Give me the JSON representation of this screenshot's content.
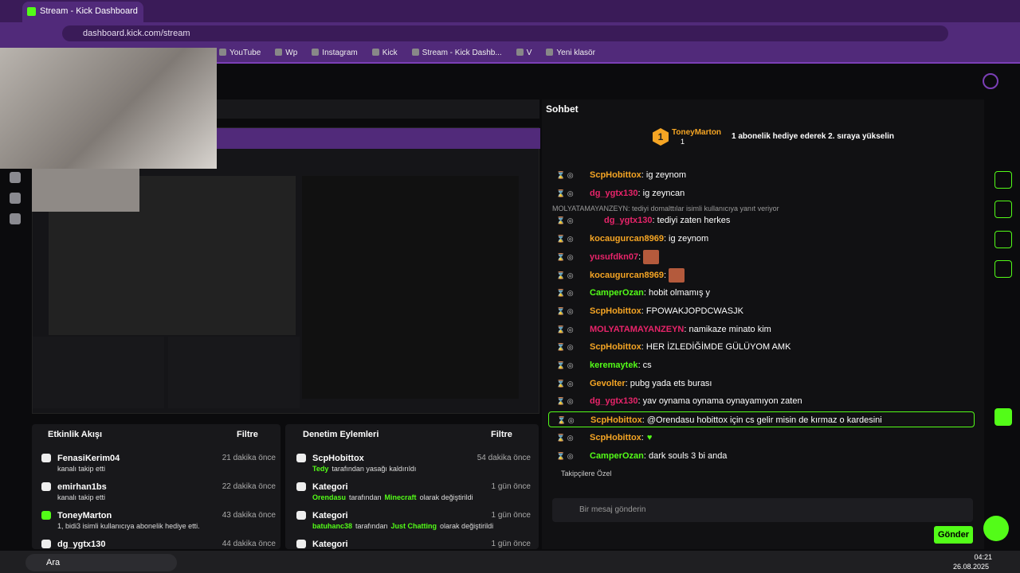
{
  "browser": {
    "tab_title": "Stream - Kick Dashboard",
    "url": "dashboard.kick.com/stream",
    "bookmarks": [
      "YouTube",
      "Wp",
      "Instagram",
      "Kick",
      "Stream - Kick Dashb...",
      "V",
      "Yeni klasör"
    ]
  },
  "chat": {
    "title": "Sohbet",
    "leader": {
      "rank": "1",
      "name": "ToneyMarton",
      "count": "1",
      "message": "1 abonelik hediye ederek 2. sıraya yükselin"
    },
    "reply_note": "MOLYATAMAYANZEYN: tediyi domalttılar isimli kullanıcıya yanıt veriyor",
    "messages": [
      {
        "user": "ScpHobittox",
        "color": "#f5a524",
        "text": ": ig zeynom"
      },
      {
        "user": "dg_ygtx130",
        "color": "#e8246a",
        "text": ": ig zeyncan"
      },
      {
        "user": "dg_ygtx130",
        "color": "#e8246a",
        "text": ": tediyi zaten herkes",
        "reply": true
      },
      {
        "user": "kocaugurcan8969",
        "color": "#f5a524",
        "text": ": ig zeynom"
      },
      {
        "user": "yusufdkn07",
        "color": "#e8246a",
        "text": ":",
        "emote": "face"
      },
      {
        "user": "kocaugurcan8969",
        "color": "#f5a524",
        "text": ":",
        "emote": "face"
      },
      {
        "user": "CamperOzan",
        "color": "#53fc18",
        "text": ": hobit olmamış y"
      },
      {
        "user": "ScpHobittox",
        "color": "#f5a524",
        "text": ": FPOWAKJOPDCWASJK"
      },
      {
        "user": "MOLYATAMAYANZEYN",
        "color": "#e8246a",
        "text": ": namikaze minato kim"
      },
      {
        "user": "ScpHobittox",
        "color": "#f5a524",
        "text": ": HER İZLEDİĞİMDE GÜLÜYOM AMK"
      },
      {
        "user": "keremaytek",
        "color": "#53fc18",
        "text": ": cs"
      },
      {
        "user": "Gevolter",
        "color": "#f5a524",
        "text": ": pubg yada ets burası"
      },
      {
        "user": "dg_ygtx130",
        "color": "#e8246a",
        "text": ": yav oynama oynama oynayamıyon zaten"
      },
      {
        "user": "ScpHobittox",
        "color": "#f5a524",
        "text": ": @Orendasu hobittox için cs gelir misin de kırmaz o kardesini",
        "highlight": true
      },
      {
        "user": "ScpHobittox",
        "color": "#f5a524",
        "text": ":",
        "emote": "heart"
      },
      {
        "user": "CamperOzan",
        "color": "#53fc18",
        "text": ": dark souls 3 bi anda"
      }
    ],
    "emote_label": "Takipçilere Özel",
    "placeholder": "Bir mesaj gönderin",
    "send": "Gönder"
  },
  "activity": {
    "title": "Etkinlik Akışı",
    "filter": "Filtre",
    "items": [
      {
        "name": "FenasiKerim04",
        "sub": "kanalı takip etti",
        "time": "21 dakika önce"
      },
      {
        "name": "emirhan1bs",
        "sub": "kanalı takip etti",
        "time": "22 dakika önce"
      },
      {
        "name": "ToneyMarton",
        "sub": "1, bidi3 isimli kullanıcıya abonelik hediye etti.",
        "time": "43 dakika önce"
      },
      {
        "name": "dg_ygtx130",
        "time": "44 dakika önce"
      }
    ]
  },
  "moderation": {
    "title": "Denetim Eylemleri",
    "filter": "Filtre",
    "items": [
      {
        "name": "ScpHobittox",
        "parts": [
          {
            "t": "Tedy",
            "hl": true
          },
          {
            "t": "tarafından yasağı kaldırıldı"
          }
        ],
        "time": "54 dakika önce"
      },
      {
        "name": "Kategori",
        "parts": [
          {
            "t": "Orendasu",
            "hl": true
          },
          {
            "t": "tarafından"
          },
          {
            "t": "Minecraft",
            "hl": true
          },
          {
            "t": "olarak değiştirildi"
          }
        ],
        "time": "1 gün önce"
      },
      {
        "name": "Kategori",
        "parts": [
          {
            "t": "batuhanc38",
            "hl": true
          },
          {
            "t": "tarafından"
          },
          {
            "t": "Just Chatting",
            "hl": true
          },
          {
            "t": "olarak değiştirildi"
          }
        ],
        "time": "1 gün önce"
      },
      {
        "name": "Kategori",
        "time": "1 gün önce"
      }
    ]
  },
  "taskbar": {
    "search": "Ara",
    "time": "04:21",
    "date": "26.08.2025"
  }
}
